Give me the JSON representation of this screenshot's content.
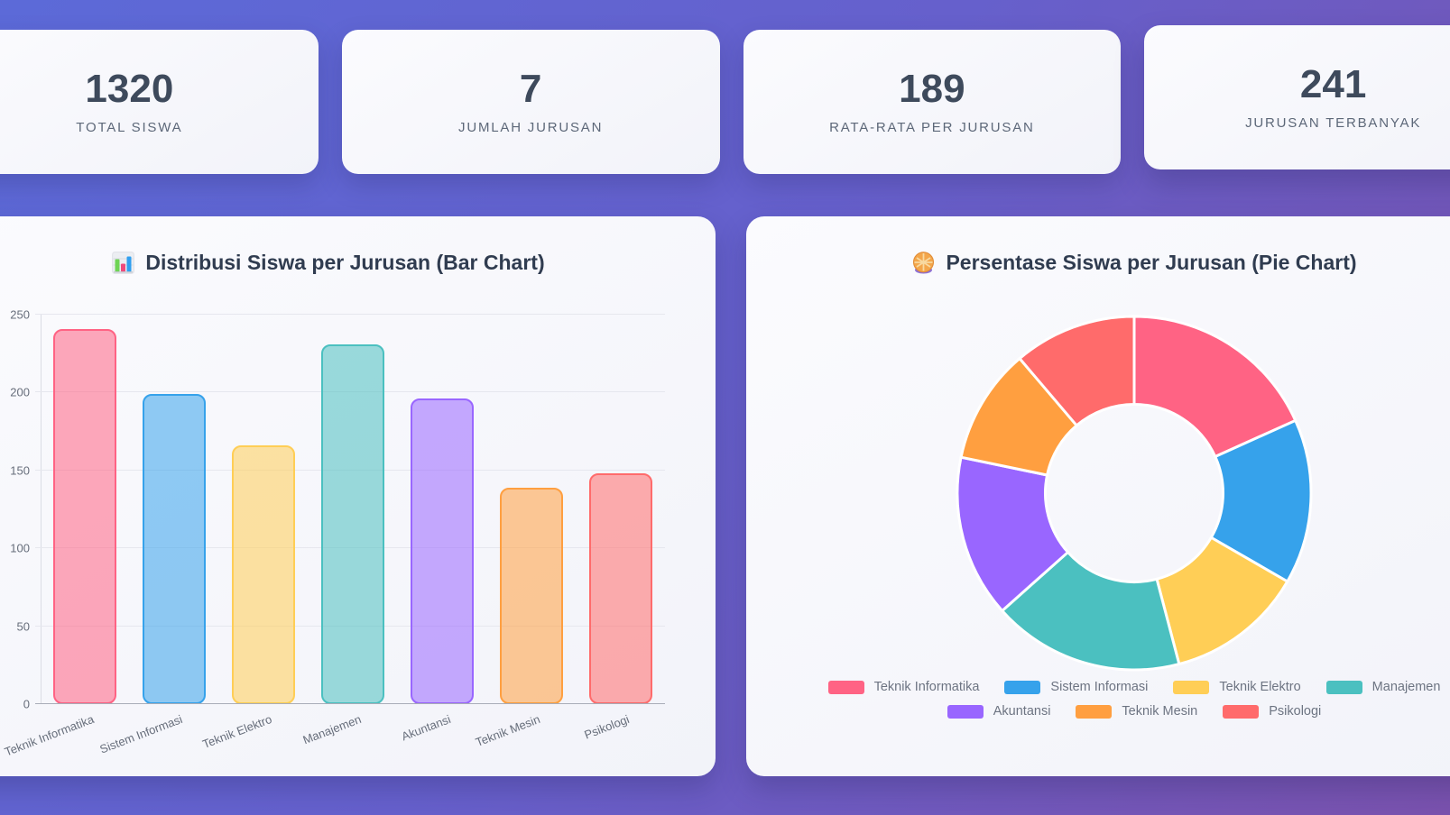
{
  "stats": {
    "cards": [
      {
        "value": "1320",
        "label": "TOTAL SISWA"
      },
      {
        "value": "7",
        "label": "JUMLAH JURUSAN"
      },
      {
        "value": "189",
        "label": "RATA-RATA PER JURUSAN"
      },
      {
        "value": "241",
        "label": "JURUSAN TERBANYAK"
      }
    ]
  },
  "chart_data": [
    {
      "type": "bar",
      "title": "Distribusi Siswa per Jurusan (Bar Chart)",
      "title_icon": "bar-chart-emoji-icon",
      "categories": [
        "Teknik Informatika",
        "Sistem Informasi",
        "Teknik Elektro",
        "Manajemen",
        "Akuntansi",
        "Teknik Mesin",
        "Psikologi"
      ],
      "values": [
        241,
        199,
        166,
        231,
        196,
        139,
        148
      ],
      "bar_colors": [
        "#FF6384",
        "#36A2EB",
        "#FFCE56",
        "#4BC0C0",
        "#9966FF",
        "#FF9F40",
        "#FF6B6B"
      ],
      "bar_fill_opacity": 0.55,
      "xlabel": "",
      "ylabel": "",
      "ylim": [
        0,
        250
      ],
      "yticks": [
        0,
        50,
        100,
        150,
        200,
        250
      ],
      "grid": true,
      "legend": false,
      "x_tick_rotation_deg": -21
    },
    {
      "type": "pie",
      "style": "doughnut",
      "title": "Persentase Siswa per Jurusan (Pie Chart)",
      "title_icon": "pie-emoji-icon",
      "labels": [
        "Teknik Informatika",
        "Sistem Informasi",
        "Teknik Elektro",
        "Manajemen",
        "Akuntansi",
        "Teknik Mesin",
        "Psikologi"
      ],
      "values": [
        241,
        199,
        166,
        231,
        196,
        139,
        148
      ],
      "colors": [
        "#FF6384",
        "#36A2EB",
        "#FFCE56",
        "#4BC0C0",
        "#9966FF",
        "#FF9F40",
        "#FF6B6B"
      ],
      "cutout_percent": 50,
      "start_angle_deg": 0,
      "legend_position": "bottom",
      "legend_rows": [
        4,
        3
      ],
      "segment_border_color": "#ffffff"
    }
  ],
  "theme": {
    "background_gradient": [
      "#5c6ad8",
      "#7a52ae"
    ],
    "card_background": "#f6f7fb",
    "stat_value_color": "#3e4a5c",
    "stat_label_color": "#5d6879",
    "title_color": "#303c50",
    "tick_label_color": "#676e7b",
    "grid_line_color": "#e6e7ee",
    "axis_line_color": "#a9adb8",
    "legend_label_color": "#6d7482"
  }
}
